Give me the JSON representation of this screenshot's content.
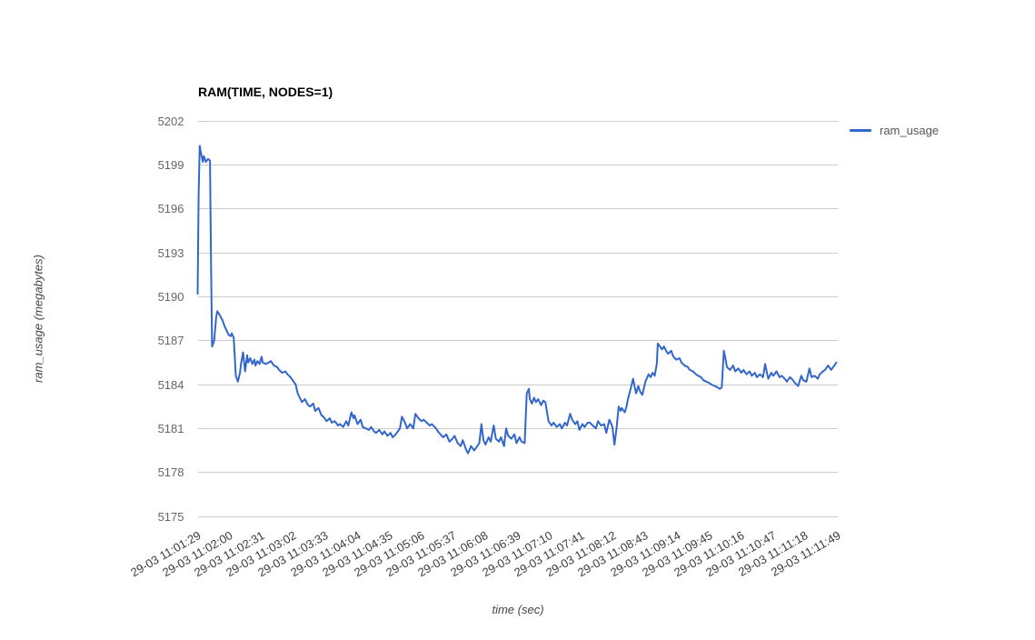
{
  "colors": {
    "series": "#3366cc",
    "gridline": "#cccccc",
    "title": "#000000"
  },
  "legend": {
    "label": "ram_usage",
    "swatch_icon": "line-swatch"
  },
  "chart_data": {
    "type": "line",
    "title": "RAM(TIME, NODES=1)",
    "xlabel": "time (sec)",
    "ylabel": "ram_usage (megabytes)",
    "ylim": [
      5175,
      5202
    ],
    "xlim": [
      0,
      620
    ],
    "grid": true,
    "legend_position": "right",
    "y_ticks": [
      5202,
      5199,
      5196,
      5193,
      5190,
      5187,
      5184,
      5181,
      5178,
      5175
    ],
    "x_tick_interval_seconds": 31,
    "x_tick_labels": [
      "29-03 11:01:29",
      "29-03 11:02:00",
      "29-03 11:02:31",
      "29-03 11:03:02",
      "29-03 11:03:33",
      "29-03 11:04:04",
      "29-03 11:04:35",
      "29-03 11:05:06",
      "29-03 11:05:37",
      "29-03 11:06:08",
      "29-03 11:06:39",
      "29-03 11:07:10",
      "29-03 11:07:41",
      "29-03 11:08:12",
      "29-03 11:08:43",
      "29-03 11:09:14",
      "29-03 11:09:45",
      "29-03 11:10:16",
      "29-03 11:10:47",
      "29-03 11:11:18",
      "29-03 11:11:49"
    ],
    "series": [
      {
        "name": "ram_usage",
        "color": "#3366cc",
        "points": [
          [
            0,
            5190.2
          ],
          [
            1,
            5197.0
          ],
          [
            2,
            5200.3
          ],
          [
            3,
            5199.9
          ],
          [
            5,
            5199.2
          ],
          [
            6,
            5199.6
          ],
          [
            8,
            5199.2
          ],
          [
            10,
            5199.4
          ],
          [
            12,
            5199.3
          ],
          [
            13,
            5192.0
          ],
          [
            14,
            5186.6
          ],
          [
            16,
            5187.0
          ],
          [
            18,
            5188.6
          ],
          [
            19,
            5189.0
          ],
          [
            21,
            5188.8
          ],
          [
            24,
            5188.4
          ],
          [
            26,
            5188.0
          ],
          [
            28,
            5187.7
          ],
          [
            30,
            5187.4
          ],
          [
            32,
            5187.3
          ],
          [
            33,
            5187.5
          ],
          [
            35,
            5187.2
          ],
          [
            37,
            5184.6
          ],
          [
            39,
            5184.2
          ],
          [
            41,
            5184.8
          ],
          [
            42,
            5185.4
          ],
          [
            44,
            5186.2
          ],
          [
            46,
            5184.9
          ],
          [
            48,
            5186.0
          ],
          [
            49,
            5185.5
          ],
          [
            51,
            5185.8
          ],
          [
            53,
            5185.4
          ],
          [
            55,
            5185.7
          ],
          [
            56,
            5185.3
          ],
          [
            58,
            5185.6
          ],
          [
            60,
            5185.4
          ],
          [
            62,
            5185.9
          ],
          [
            63,
            5185.5
          ],
          [
            66,
            5185.4
          ],
          [
            69,
            5185.5
          ],
          [
            71,
            5185.6
          ],
          [
            74,
            5185.3
          ],
          [
            77,
            5185.2
          ],
          [
            79,
            5185.0
          ],
          [
            82,
            5184.8
          ],
          [
            85,
            5184.9
          ],
          [
            87,
            5184.7
          ],
          [
            90,
            5184.5
          ],
          [
            92,
            5184.3
          ],
          [
            95,
            5184.0
          ],
          [
            97,
            5183.4
          ],
          [
            99,
            5183.1
          ],
          [
            101,
            5182.8
          ],
          [
            104,
            5183.0
          ],
          [
            107,
            5182.6
          ],
          [
            109,
            5182.5
          ],
          [
            112,
            5182.7
          ],
          [
            114,
            5182.2
          ],
          [
            117,
            5182.4
          ],
          [
            120,
            5181.9
          ],
          [
            122,
            5181.8
          ],
          [
            125,
            5181.5
          ],
          [
            128,
            5181.7
          ],
          [
            130,
            5181.4
          ],
          [
            133,
            5181.5
          ],
          [
            136,
            5181.2
          ],
          [
            138,
            5181.3
          ],
          [
            141,
            5181.1
          ],
          [
            144,
            5181.5
          ],
          [
            146,
            5181.2
          ],
          [
            149,
            5182.1
          ],
          [
            151,
            5181.7
          ],
          [
            152,
            5181.9
          ],
          [
            155,
            5181.3
          ],
          [
            158,
            5181.6
          ],
          [
            160,
            5181.1
          ],
          [
            163,
            5181.0
          ],
          [
            166,
            5180.9
          ],
          [
            168,
            5181.1
          ],
          [
            171,
            5180.8
          ],
          [
            173,
            5180.7
          ],
          [
            176,
            5180.9
          ],
          [
            179,
            5180.6
          ],
          [
            181,
            5180.8
          ],
          [
            184,
            5180.5
          ],
          [
            187,
            5180.7
          ],
          [
            189,
            5180.4
          ],
          [
            192,
            5180.6
          ],
          [
            196,
            5181.0
          ],
          [
            198,
            5181.8
          ],
          [
            201,
            5181.4
          ],
          [
            203,
            5181.0
          ],
          [
            206,
            5181.3
          ],
          [
            209,
            5181.0
          ],
          [
            211,
            5182.0
          ],
          [
            214,
            5181.7
          ],
          [
            217,
            5181.5
          ],
          [
            219,
            5181.6
          ],
          [
            222,
            5181.4
          ],
          [
            225,
            5181.2
          ],
          [
            227,
            5181.3
          ],
          [
            231,
            5181.0
          ],
          [
            234,
            5180.7
          ],
          [
            238,
            5180.4
          ],
          [
            241,
            5180.6
          ],
          [
            244,
            5180.1
          ],
          [
            247,
            5180.3
          ],
          [
            249,
            5180.5
          ],
          [
            252,
            5180.0
          ],
          [
            255,
            5179.8
          ],
          [
            257,
            5180.2
          ],
          [
            260,
            5179.6
          ],
          [
            262,
            5179.3
          ],
          [
            265,
            5179.8
          ],
          [
            268,
            5179.5
          ],
          [
            270,
            5179.7
          ],
          [
            273,
            5180.0
          ],
          [
            275,
            5181.3
          ],
          [
            277,
            5180.2
          ],
          [
            279,
            5179.9
          ],
          [
            282,
            5180.4
          ],
          [
            284,
            5180.1
          ],
          [
            287,
            5181.2
          ],
          [
            289,
            5180.3
          ],
          [
            292,
            5180.1
          ],
          [
            294,
            5180.4
          ],
          [
            297,
            5179.8
          ],
          [
            299,
            5181.0
          ],
          [
            301,
            5180.5
          ],
          [
            304,
            5180.3
          ],
          [
            307,
            5180.6
          ],
          [
            309,
            5180.0
          ],
          [
            312,
            5180.4
          ],
          [
            314,
            5180.1
          ],
          [
            317,
            5180.0
          ],
          [
            319,
            5183.4
          ],
          [
            321,
            5183.7
          ],
          [
            322,
            5183.0
          ],
          [
            324,
            5182.7
          ],
          [
            326,
            5183.1
          ],
          [
            328,
            5182.8
          ],
          [
            330,
            5183.0
          ],
          [
            333,
            5182.6
          ],
          [
            335,
            5182.9
          ],
          [
            337,
            5182.8
          ],
          [
            340,
            5181.5
          ],
          [
            343,
            5181.2
          ],
          [
            345,
            5181.4
          ],
          [
            348,
            5181.1
          ],
          [
            351,
            5181.3
          ],
          [
            353,
            5181.0
          ],
          [
            356,
            5181.4
          ],
          [
            358,
            5181.2
          ],
          [
            361,
            5182.0
          ],
          [
            363,
            5181.6
          ],
          [
            366,
            5181.3
          ],
          [
            368,
            5181.5
          ],
          [
            370,
            5180.9
          ],
          [
            373,
            5181.3
          ],
          [
            375,
            5181.1
          ],
          [
            378,
            5181.4
          ],
          [
            380,
            5181.4
          ],
          [
            383,
            5181.2
          ],
          [
            386,
            5181.0
          ],
          [
            388,
            5181.5
          ],
          [
            391,
            5181.2
          ],
          [
            394,
            5181.3
          ],
          [
            396,
            5180.7
          ],
          [
            399,
            5181.6
          ],
          [
            402,
            5181.1
          ],
          [
            404,
            5179.9
          ],
          [
            406,
            5181.0
          ],
          [
            408,
            5182.5
          ],
          [
            410,
            5182.2
          ],
          [
            411,
            5182.4
          ],
          [
            414,
            5182.1
          ],
          [
            416,
            5182.6
          ],
          [
            417,
            5183.0
          ],
          [
            420,
            5183.8
          ],
          [
            422,
            5184.4
          ],
          [
            424,
            5183.7
          ],
          [
            425,
            5183.4
          ],
          [
            427,
            5183.9
          ],
          [
            429,
            5183.5
          ],
          [
            431,
            5183.3
          ],
          [
            432,
            5183.6
          ],
          [
            434,
            5184.2
          ],
          [
            437,
            5184.7
          ],
          [
            439,
            5184.5
          ],
          [
            441,
            5184.8
          ],
          [
            443,
            5184.6
          ],
          [
            445,
            5185.4
          ],
          [
            446,
            5186.8
          ],
          [
            448,
            5186.6
          ],
          [
            450,
            5186.4
          ],
          [
            452,
            5186.6
          ],
          [
            454,
            5186.3
          ],
          [
            456,
            5186.1
          ],
          [
            459,
            5186.3
          ],
          [
            461,
            5185.9
          ],
          [
            464,
            5185.7
          ],
          [
            467,
            5185.8
          ],
          [
            469,
            5185.5
          ],
          [
            472,
            5185.3
          ],
          [
            475,
            5185.2
          ],
          [
            477,
            5185.0
          ],
          [
            480,
            5184.9
          ],
          [
            483,
            5184.7
          ],
          [
            485,
            5184.6
          ],
          [
            488,
            5184.5
          ],
          [
            490,
            5184.3
          ],
          [
            493,
            5184.2
          ],
          [
            496,
            5184.1
          ],
          [
            498,
            5184.0
          ],
          [
            501,
            5183.9
          ],
          [
            504,
            5183.8
          ],
          [
            506,
            5183.7
          ],
          [
            508,
            5183.8
          ],
          [
            510,
            5186.3
          ],
          [
            512,
            5185.6
          ],
          [
            513,
            5185.2
          ],
          [
            516,
            5185.0
          ],
          [
            519,
            5185.3
          ],
          [
            521,
            5184.9
          ],
          [
            524,
            5185.1
          ],
          [
            527,
            5184.8
          ],
          [
            529,
            5185.0
          ],
          [
            532,
            5184.7
          ],
          [
            535,
            5184.9
          ],
          [
            537,
            5184.6
          ],
          [
            540,
            5184.8
          ],
          [
            542,
            5184.5
          ],
          [
            545,
            5184.7
          ],
          [
            548,
            5184.5
          ],
          [
            550,
            5185.4
          ],
          [
            553,
            5184.4
          ],
          [
            556,
            5184.8
          ],
          [
            558,
            5184.6
          ],
          [
            561,
            5184.9
          ],
          [
            564,
            5184.5
          ],
          [
            566,
            5184.6
          ],
          [
            569,
            5184.4
          ],
          [
            571,
            5184.2
          ],
          [
            574,
            5184.5
          ],
          [
            577,
            5184.3
          ],
          [
            579,
            5184.1
          ],
          [
            582,
            5183.9
          ],
          [
            585,
            5184.6
          ],
          [
            587,
            5184.3
          ],
          [
            590,
            5184.2
          ],
          [
            593,
            5185.1
          ],
          [
            595,
            5184.5
          ],
          [
            598,
            5184.6
          ],
          [
            601,
            5184.4
          ],
          [
            603,
            5184.7
          ],
          [
            606,
            5184.9
          ],
          [
            608,
            5185.0
          ],
          [
            611,
            5185.3
          ],
          [
            614,
            5185.0
          ],
          [
            616,
            5185.2
          ],
          [
            619,
            5185.5
          ]
        ]
      }
    ]
  }
}
